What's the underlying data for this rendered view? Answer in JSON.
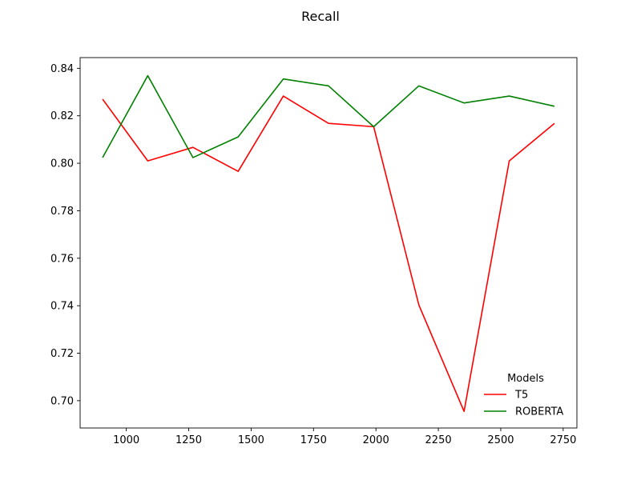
{
  "chart_data": {
    "type": "line",
    "title": "Recall",
    "xlabel": "",
    "ylabel": "",
    "xlim": [
      815,
      2805
    ],
    "ylim": [
      0.6885,
      0.8445
    ],
    "xticks": [
      1000,
      1250,
      1500,
      1750,
      2000,
      2250,
      2500,
      2750
    ],
    "yticks": [
      0.7,
      0.72,
      0.74,
      0.76,
      0.78,
      0.8,
      0.82,
      0.84
    ],
    "ytick_labels": [
      "0.70",
      "0.72",
      "0.74",
      "0.76",
      "0.78",
      "0.80",
      "0.82",
      "0.84"
    ],
    "x": [
      905,
      1086,
      1267,
      1448,
      1629,
      1810,
      1991,
      2172,
      2353,
      2534,
      2715
    ],
    "series": [
      {
        "name": "T5",
        "color": "#ff0000",
        "values": [
          0.827,
          0.801,
          0.8067,
          0.7966,
          0.8283,
          0.8168,
          0.8154,
          0.7403,
          0.6955,
          0.801,
          0.8168
        ]
      },
      {
        "name": "ROBERTA",
        "color": "#008000",
        "values": [
          0.8024,
          0.8369,
          0.8024,
          0.8111,
          0.8355,
          0.8326,
          0.8154,
          0.8326,
          0.8254,
          0.8283,
          0.824
        ]
      }
    ],
    "grid": false,
    "legend": {
      "title": "Models",
      "placement": "lower-right",
      "entries": [
        "T5",
        "ROBERTA"
      ]
    }
  }
}
